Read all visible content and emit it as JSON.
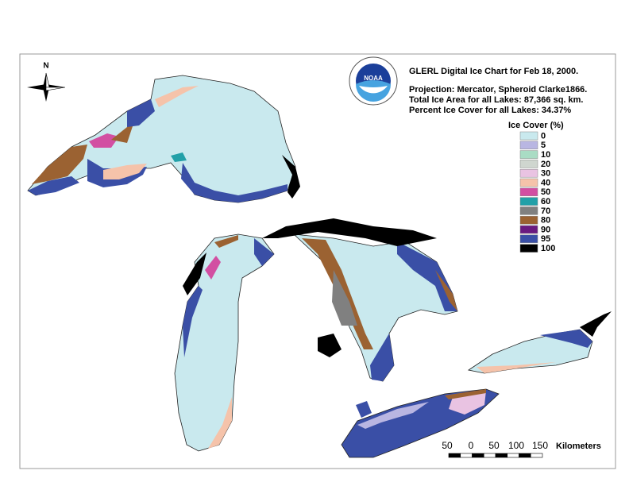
{
  "header": {
    "title": "GLERL Digital Ice Chart for Feb 18, 2000.",
    "projection": "Projection:  Mercator, Spheroid Clarke1866.",
    "total_area": "Total Ice Area for all Lakes: 87,366 sq. km.",
    "percent_cover": "Percent Ice Cover for all Lakes:  34.37%"
  },
  "logo_text": "NOAA",
  "compass": "N",
  "legend": {
    "title": "Ice Cover (%)",
    "items": [
      {
        "label": "0",
        "color": "#c9e9ee"
      },
      {
        "label": "5",
        "color": "#b9b6e2"
      },
      {
        "label": "10",
        "color": "#a9dcc4"
      },
      {
        "label": "20",
        "color": "#cfd6cf"
      },
      {
        "label": "30",
        "color": "#e9c3e2"
      },
      {
        "label": "40",
        "color": "#f5c3aa"
      },
      {
        "label": "50",
        "color": "#d24fa2"
      },
      {
        "label": "60",
        "color": "#22a0a8"
      },
      {
        "label": "70",
        "color": "#808080"
      },
      {
        "label": "80",
        "color": "#9b6232"
      },
      {
        "label": "90",
        "color": "#6a1a80"
      },
      {
        "label": "95",
        "color": "#3a4fa6"
      },
      {
        "label": "100",
        "color": "#000000"
      }
    ]
  },
  "scale": {
    "labels": [
      "50",
      "0",
      "50",
      "100",
      "150"
    ],
    "unit": "Kilometers"
  }
}
